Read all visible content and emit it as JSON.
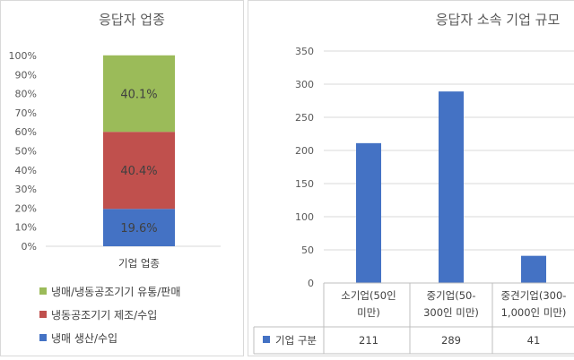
{
  "chart_data": [
    {
      "type": "bar",
      "stacked": true,
      "title": "응답자 업종",
      "categories": [
        "기업 업종"
      ],
      "yticks": [
        "0%",
        "10%",
        "20%",
        "30%",
        "40%",
        "50%",
        "60%",
        "70%",
        "80%",
        "90%",
        "100%"
      ],
      "ylim": [
        0,
        100
      ],
      "series": [
        {
          "name": "냉매 생산/수입",
          "values": [
            19.6
          ],
          "label": "19.6%",
          "color": "#4472c4"
        },
        {
          "name": "냉동공조기기 제조/수입",
          "values": [
            40.4
          ],
          "label": "40.4%",
          "color": "#c0504d"
        },
        {
          "name": "냉매/냉동공조기기 유통/판매",
          "values": [
            40.1
          ],
          "label": "40.1%",
          "color": "#9bbb59"
        }
      ],
      "legend_order": [
        "냉매/냉동공조기기 유통/판매",
        "냉동공조기기 제조/수입",
        "냉매 생산/수입"
      ],
      "legend": "bottom",
      "grid": false
    },
    {
      "type": "bar",
      "title": "응답자 소속 기업 규모",
      "categories": [
        [
          "소기업(50인",
          "미만)"
        ],
        [
          "중기업(50-",
          "300인 미만)"
        ],
        [
          "중견기업(300-",
          "1,000인 미만)"
        ]
      ],
      "series": [
        {
          "name": "기업 구분",
          "values": [
            211,
            289,
            41
          ],
          "color": "#4472c4"
        }
      ],
      "ylim": [
        0,
        350
      ],
      "yticks": [
        "0",
        "50",
        "100",
        "150",
        "200",
        "250",
        "300",
        "350"
      ],
      "grid": true,
      "data_table": true
    }
  ]
}
